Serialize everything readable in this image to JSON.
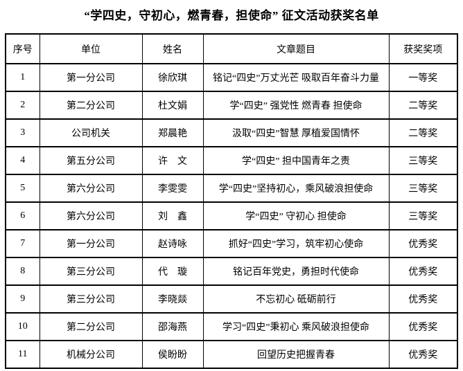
{
  "page": {
    "title": "“学四史，守初心，燃青春，担使命” 征文活动获奖名单"
  },
  "colors": {
    "background": "#ffffff",
    "border": "#000000",
    "text": "#000000"
  },
  "table": {
    "headers": {
      "no": "序号",
      "unit": "单位",
      "name": "姓名",
      "title": "文章题目",
      "award": "获奖奖项"
    },
    "rows": [
      {
        "no": "1",
        "unit": "第一分公司",
        "name": "徐欣琪",
        "title": "铭记“四史”万丈光芒 吸取百年奋斗力量",
        "award": "一等奖"
      },
      {
        "no": "2",
        "unit": "第二分公司",
        "name": "杜文娟",
        "title": "学“四史” 强党性 燃青春 担使命",
        "award": "二等奖"
      },
      {
        "no": "3",
        "unit": "公司机关",
        "name": "郑晨艳",
        "title": "汲取“四史”智慧 厚植爱国情怀",
        "award": "二等奖"
      },
      {
        "no": "4",
        "unit": "第五分公司",
        "name": "许　文",
        "title": "学“四史” 担中国青年之责",
        "award": "三等奖"
      },
      {
        "no": "5",
        "unit": "第六分公司",
        "name": "李雯雯",
        "title": "学“四史”坚持初心，乘风破浪担使命",
        "award": "三等奖"
      },
      {
        "no": "6",
        "unit": "第六分公司",
        "name": "刘　鑫",
        "title": "学“四史” 守初心 担使命",
        "award": "三等奖"
      },
      {
        "no": "7",
        "unit": "第一分公司",
        "name": "赵诗咏",
        "title": "抓好“四史”学习，筑牢初心使命",
        "award": "优秀奖"
      },
      {
        "no": "8",
        "unit": "第三分公司",
        "name": "代　璇",
        "title": "铭记百年党史，勇担时代使命",
        "award": "优秀奖"
      },
      {
        "no": "9",
        "unit": "第三分公司",
        "name": "李晓燚",
        "title": "不忘初心 砥砺前行",
        "award": "优秀奖"
      },
      {
        "no": "10",
        "unit": "第二分公司",
        "name": "邵海燕",
        "title": "学习“四史”秉初心 乘风破浪担使命",
        "award": "优秀奖"
      },
      {
        "no": "11",
        "unit": "机械分公司",
        "name": "侯盼盼",
        "title": "回望历史把握青春",
        "award": "优秀奖"
      }
    ]
  }
}
